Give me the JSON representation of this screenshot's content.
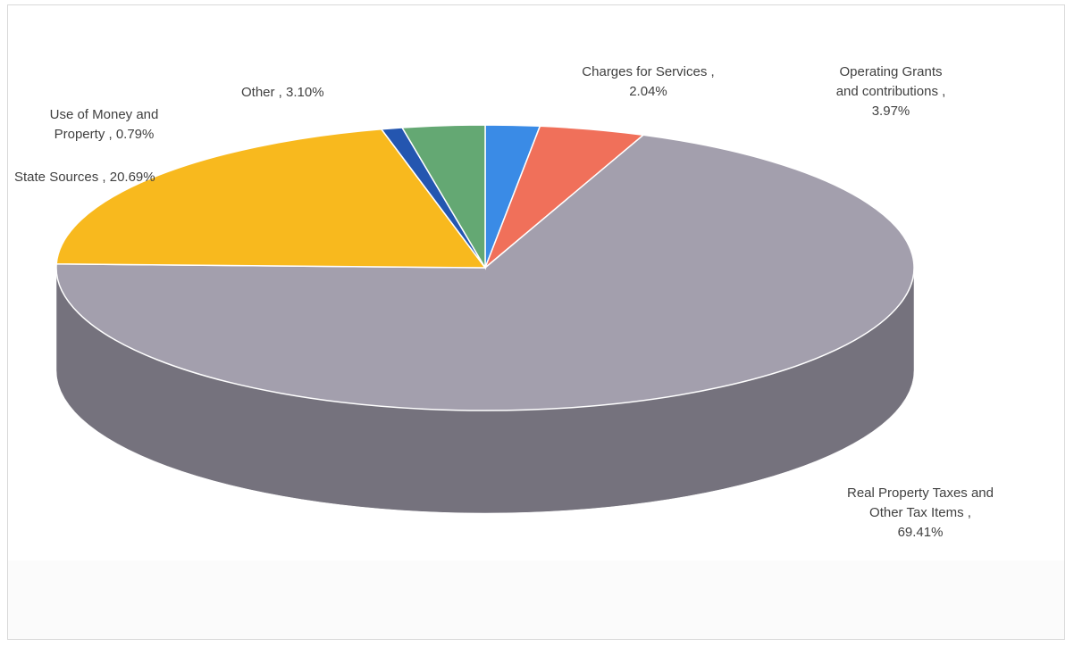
{
  "chart_data": {
    "type": "pie",
    "title": "",
    "style": "3d",
    "slices": [
      {
        "label": "Charges for Services",
        "value": 2.04,
        "value_label": "2.04%",
        "color": "#3a8be6"
      },
      {
        "label": "Operating Grants and contributions",
        "value": 3.97,
        "value_label": "3.97%",
        "color": "#f0705a"
      },
      {
        "label": "Real Property Taxes and Other Tax Items",
        "value": 69.41,
        "value_label": "69.41%",
        "color": "#a39fad"
      },
      {
        "label": "State Sources",
        "value": 20.69,
        "value_label": "20.69%",
        "color": "#f8b91e"
      },
      {
        "label": "Use of Money and Property",
        "value": 0.79,
        "value_label": "0.79%",
        "color": "#2456b0"
      },
      {
        "label": "Other",
        "value": 3.1,
        "value_label": "3.10%",
        "color": "#64a873"
      }
    ]
  },
  "labels": {
    "charges": "Charges for Services ,\n2.04%",
    "operating": "Operating Grants\nand contributions ,\n3.97%",
    "real_property": "Real Property Taxes and\nOther Tax Items ,\n69.41%",
    "state": "State Sources , 20.69%",
    "money": "Use of Money and\nProperty , 0.79%",
    "other": "Other , 3.10%"
  }
}
